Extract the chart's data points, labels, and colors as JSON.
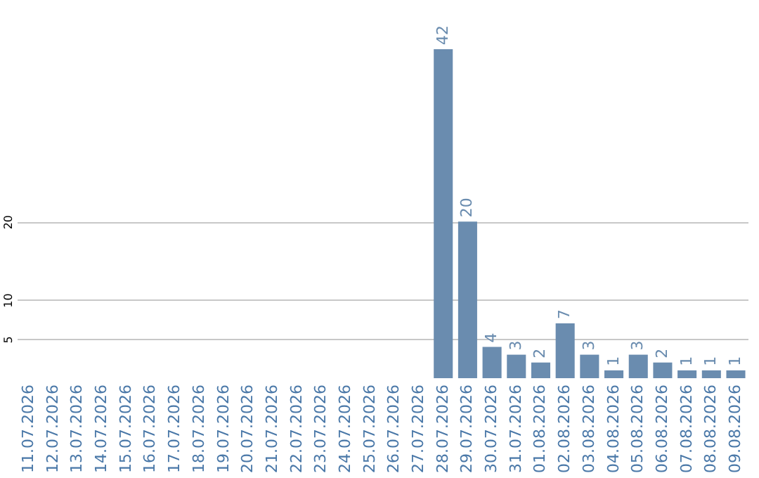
{
  "chart_data": {
    "type": "bar",
    "categories": [
      "11.07.2026",
      "12.07.2026",
      "13.07.2026",
      "14.07.2026",
      "15.07.2026",
      "16.07.2026",
      "17.07.2026",
      "18.07.2026",
      "19.07.2026",
      "20.07.2026",
      "21.07.2026",
      "22.07.2026",
      "23.07.2026",
      "24.07.2026",
      "25.07.2026",
      "26.07.2026",
      "27.07.2026",
      "28.07.2026",
      "29.07.2026",
      "30.07.2026",
      "31.07.2026",
      "01.08.2026",
      "02.08.2026",
      "03.08.2026",
      "04.08.2026",
      "05.08.2026",
      "06.08.2026",
      "07.08.2026",
      "08.08.2026",
      "09.08.2026"
    ],
    "values": [
      0,
      0,
      0,
      0,
      0,
      0,
      0,
      0,
      0,
      0,
      0,
      0,
      0,
      0,
      0,
      0,
      0,
      42,
      20,
      4,
      3,
      2,
      7,
      3,
      1,
      3,
      2,
      1,
      1,
      1
    ],
    "value_labels": [
      null,
      null,
      null,
      null,
      null,
      null,
      null,
      null,
      null,
      null,
      null,
      null,
      null,
      null,
      null,
      null,
      null,
      "42",
      "20",
      "4",
      "3",
      "2",
      "7",
      "3",
      "1",
      "3",
      "2",
      "1",
      "1",
      "1"
    ],
    "color": "#6a8caf",
    "ylim": [
      0,
      42
    ],
    "yticks": [
      5,
      10,
      20
    ],
    "grid": "y"
  }
}
